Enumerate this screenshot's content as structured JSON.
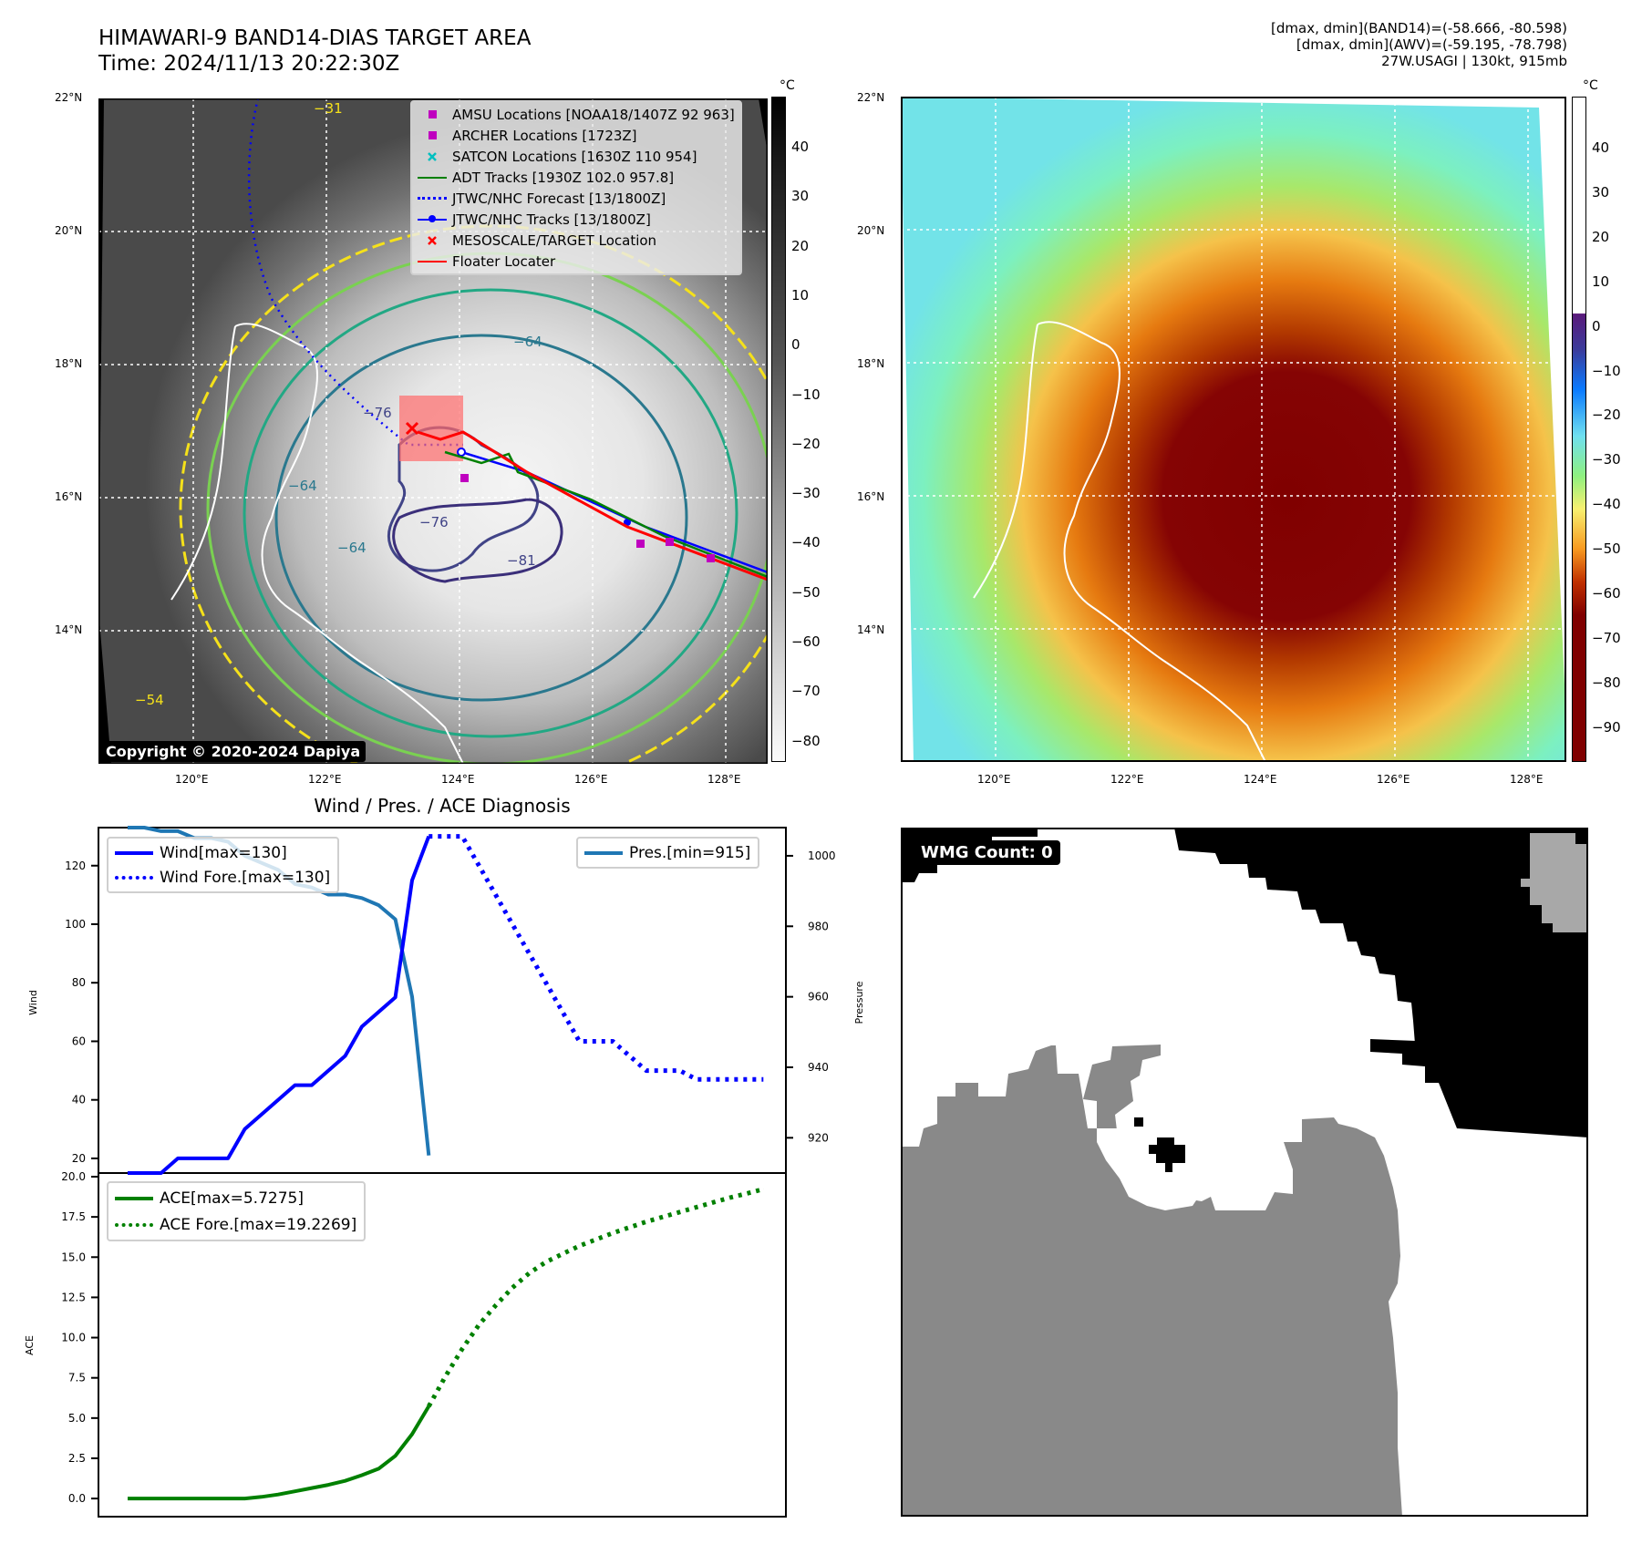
{
  "header": {
    "title_line1": "HIMAWARI-9 BAND14-DIAS TARGET AREA",
    "title_line2": "Time: 2024/11/13 20:22:30Z",
    "info_line1": "[dmax, dmin](BAND14)=(-58.666, -80.598)",
    "info_line2": "[dmax, dmin](AWV)=(-59.195, -78.798)",
    "info_line3": "27W.USAGI | 130kt, 915mb"
  },
  "map_left": {
    "lat_ticks": [
      "22°N",
      "20°N",
      "18°N",
      "16°N",
      "14°N"
    ],
    "lon_ticks": [
      "120°E",
      "122°E",
      "124°E",
      "126°E",
      "128°E"
    ],
    "colorbar_unit": "°C",
    "colorbar_ticks": [
      "40",
      "30",
      "20",
      "10",
      "0",
      "−10",
      "−20",
      "−30",
      "−40",
      "−50",
      "−60",
      "−70",
      "−80"
    ],
    "contour_labels": [
      "−31",
      "−54",
      "−64",
      "−64",
      "−64",
      "−76",
      "−76",
      "−81"
    ],
    "copyright": "Copyright © 2020-2024 Dapiya",
    "legend": [
      {
        "label": "AMSU Locations [NOAA18/1407Z 92 963]",
        "symbol": "square",
        "color": "#bf00bf"
      },
      {
        "label": "ARCHER Locations [1723Z]",
        "symbol": "square",
        "color": "#bf00bf"
      },
      {
        "label": "SATCON Locations [1630Z 110 954]",
        "symbol": "x",
        "color": "#00bfbf"
      },
      {
        "label": "ADT Tracks [1930Z 102.0 957.8]",
        "symbol": "line",
        "color": "#008000"
      },
      {
        "label": "JTWC/NHC Forecast [13/1800Z]",
        "symbol": "dotted",
        "color": "#0000ff"
      },
      {
        "label": "JTWC/NHC Tracks [13/1800Z]",
        "symbol": "line-dot",
        "color": "#0000ff"
      },
      {
        "label": "MESOSCALE/TARGET Location",
        "symbol": "x",
        "color": "#ff0000"
      },
      {
        "label": "Floater Locater",
        "symbol": "line",
        "color": "#ff0000"
      }
    ]
  },
  "map_right": {
    "lat_ticks": [
      "22°N",
      "20°N",
      "18°N",
      "16°N",
      "14°N"
    ],
    "lon_ticks": [
      "120°E",
      "122°E",
      "124°E",
      "126°E",
      "128°E"
    ],
    "colorbar_unit": "°C",
    "colorbar_ticks": [
      "40",
      "30",
      "20",
      "10",
      "0",
      "−10",
      "−20",
      "−30",
      "−40",
      "−50",
      "−60",
      "−70",
      "−80",
      "−90"
    ]
  },
  "wmg": {
    "label": "WMG Count: 0"
  },
  "chart_data": [
    {
      "type": "line",
      "title": "Wind / Pres. / ACE Diagnosis",
      "ylabel": "Wind",
      "y2label": "Pressure",
      "ylim": [
        15,
        133
      ],
      "y2lim": [
        910,
        1008
      ],
      "yticks": [
        20,
        40,
        60,
        80,
        100,
        120
      ],
      "y2ticks": [
        920,
        940,
        960,
        980,
        1000
      ],
      "grid": false,
      "legend_left": "upper-left",
      "legend_right": "upper-right",
      "series": [
        {
          "name": "Wind[max=130]",
          "axis": "left",
          "style": "solid",
          "color": "#0000ff",
          "x": [
            0,
            1,
            2,
            3,
            4,
            5,
            6,
            7,
            8,
            9,
            10,
            11,
            12,
            13,
            14,
            15,
            16,
            17,
            18
          ],
          "values": [
            15,
            15,
            15,
            20,
            20,
            20,
            20,
            30,
            35,
            40,
            45,
            45,
            50,
            55,
            65,
            70,
            75,
            115,
            130
          ]
        },
        {
          "name": "Wind Fore.[max=130]",
          "axis": "left",
          "style": "dotted",
          "color": "#0000ff",
          "x": [
            18,
            19,
            20,
            21,
            22,
            23,
            24,
            25,
            26,
            27,
            28,
            29,
            30,
            31,
            32,
            33,
            34,
            35,
            36,
            37,
            38
          ],
          "values": [
            130,
            130,
            130,
            120,
            110,
            100,
            90,
            80,
            70,
            60,
            60,
            60,
            55,
            50,
            50,
            50,
            47,
            47,
            47,
            47,
            47
          ]
        },
        {
          "name": "Pres.[min=915]",
          "axis": "right",
          "style": "solid",
          "color": "#1f77b4",
          "x": [
            0,
            1,
            2,
            3,
            4,
            5,
            6,
            7,
            8,
            9,
            10,
            11,
            12,
            13,
            14,
            15,
            16,
            17,
            18
          ],
          "values": [
            1008,
            1008,
            1007,
            1007,
            1005,
            1005,
            1004,
            1000,
            998,
            996,
            992,
            991,
            989,
            989,
            988,
            986,
            982,
            960,
            915
          ]
        }
      ]
    },
    {
      "type": "line",
      "title": "",
      "ylabel": "ACE",
      "ylim": [
        -0.9,
        20.0
      ],
      "yticks": [
        0.0,
        2.5,
        5.0,
        7.5,
        10.0,
        12.5,
        15.0,
        17.5,
        20.0
      ],
      "ytick_labels": [
        "0.0",
        "2.5",
        "5.0",
        "7.5",
        "10.0",
        "12.5",
        "15.0",
        "17.5",
        "20.0"
      ],
      "grid": false,
      "legend": "upper-left",
      "series": [
        {
          "name": "ACE[max=5.7275]",
          "style": "solid",
          "color": "#008000",
          "x": [
            0,
            1,
            2,
            3,
            4,
            5,
            6,
            7,
            8,
            9,
            10,
            11,
            12,
            13,
            14,
            15,
            16,
            17,
            18
          ],
          "values": [
            0,
            0,
            0,
            0,
            0,
            0,
            0,
            0,
            0.1,
            0.25,
            0.45,
            0.65,
            0.85,
            1.1,
            1.45,
            1.85,
            2.65,
            4.0,
            5.73
          ]
        },
        {
          "name": "ACE Fore.[max=19.2269]",
          "style": "dotted",
          "color": "#008000",
          "x": [
            18,
            19,
            20,
            21,
            22,
            23,
            24,
            25,
            26,
            27,
            28,
            29,
            30,
            31,
            32,
            33,
            34,
            35,
            36,
            37,
            38
          ],
          "values": [
            5.73,
            7.6,
            9.3,
            10.8,
            12.0,
            13.1,
            14.0,
            14.7,
            15.2,
            15.7,
            16.1,
            16.5,
            16.85,
            17.2,
            17.5,
            17.8,
            18.1,
            18.4,
            18.7,
            18.95,
            19.23
          ]
        }
      ]
    }
  ]
}
